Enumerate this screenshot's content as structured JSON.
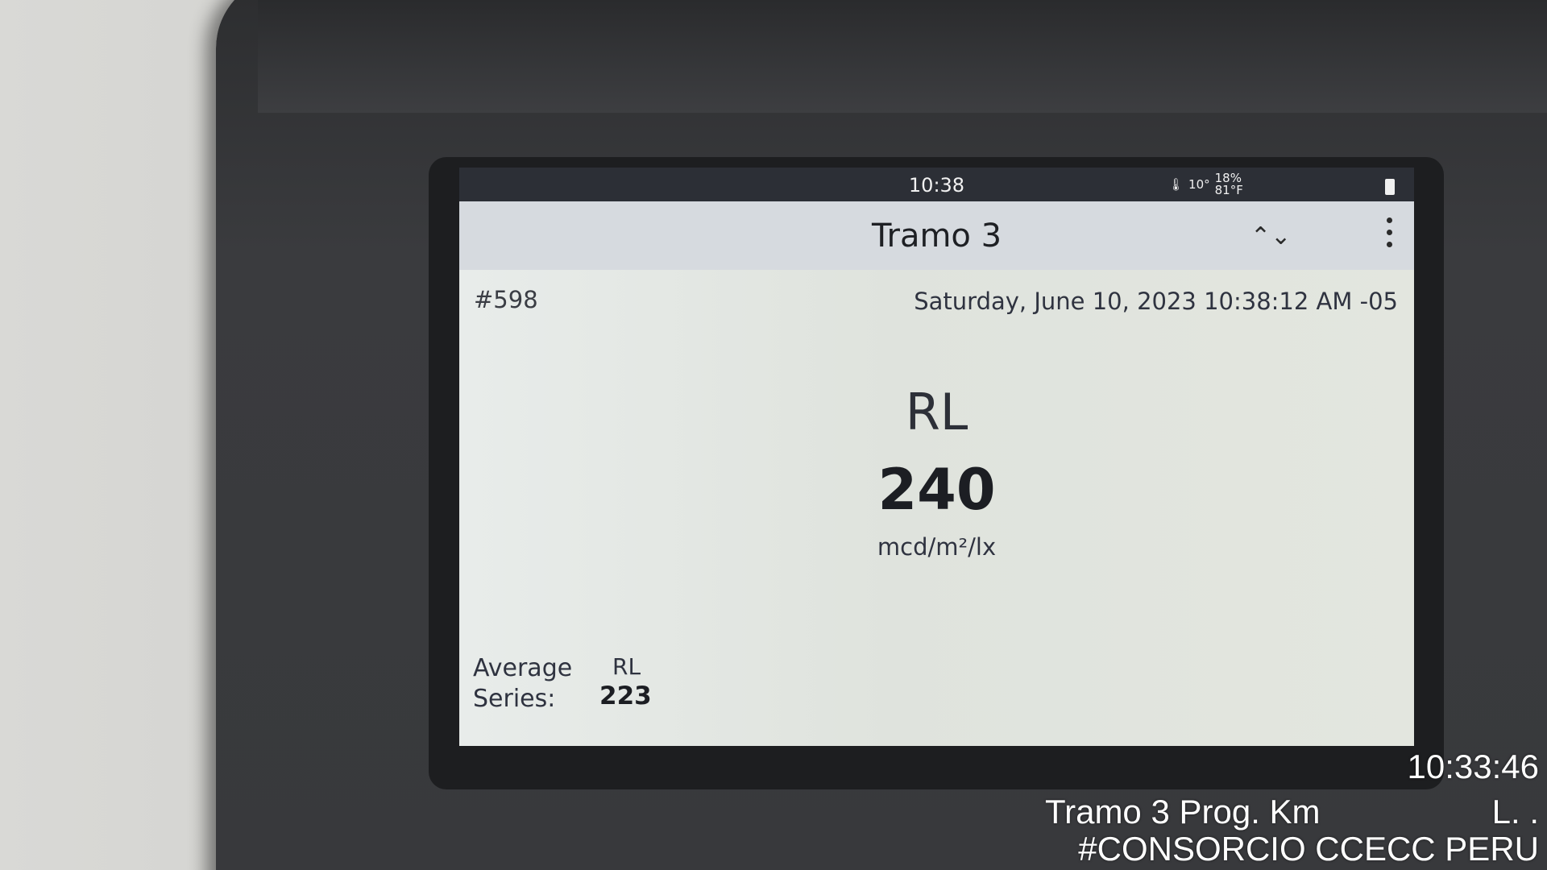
{
  "status_bar": {
    "time": "10:38",
    "temp_c": "10°",
    "humidity": "18%",
    "temp_f": "81°F"
  },
  "app_bar": {
    "title": "Tramo 3",
    "chevron_icon": "chevron-up-down-icon",
    "menu_icon": "more-vert-icon"
  },
  "record": {
    "id": "#598",
    "datetime": "Saturday, June 10, 2023 10:38:12 AM -05"
  },
  "measurement": {
    "label": "RL",
    "value": "240",
    "unit": "mcd/m²/lx"
  },
  "average": {
    "line1": "Average",
    "line2": "Series:",
    "metric": "RL",
    "value": "223"
  },
  "photo_overlay": {
    "time": "10:33:46",
    "location": "Tramo 3 Prog. Km",
    "location_suffix": "L.   .",
    "tag": "#CONSORCIO CCECC PERU"
  }
}
